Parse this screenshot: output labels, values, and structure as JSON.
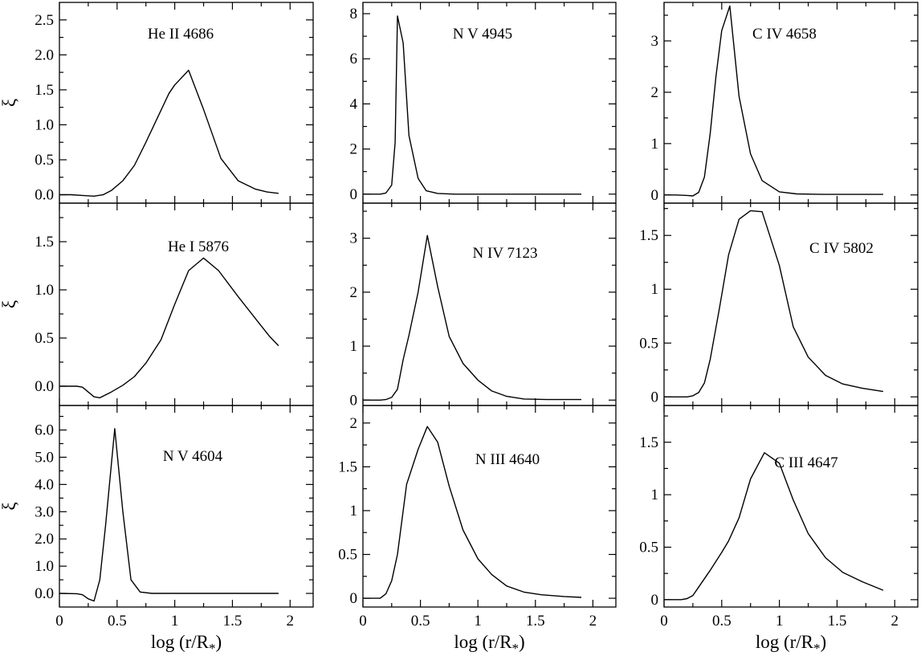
{
  "chart_data": [
    {
      "type": "line",
      "title": "He II 4686",
      "xlabel": "",
      "ylabel": "ξ",
      "xlim": [
        0,
        2.2
      ],
      "ylim": [
        -0.12,
        2.75
      ],
      "xticks": [
        0,
        0.5,
        1,
        1.5,
        2
      ],
      "xticklabels": [],
      "yticks": [
        0,
        0.5,
        1.0,
        1.5,
        2.0,
        2.5
      ],
      "yticklabels": [
        "0.0",
        "0.5",
        "1.0",
        "1.5",
        "2.0",
        "2.5"
      ],
      "x": [
        0,
        0.1,
        0.2,
        0.3,
        0.38,
        0.45,
        0.55,
        0.65,
        0.75,
        0.85,
        0.95,
        1.0,
        1.12,
        1.25,
        1.4,
        1.55,
        1.7,
        1.8,
        1.9
      ],
      "y": [
        0,
        0,
        -0.01,
        -0.02,
        0,
        0.06,
        0.2,
        0.42,
        0.75,
        1.1,
        1.45,
        1.57,
        1.78,
        1.22,
        0.52,
        0.2,
        0.08,
        0.04,
        0.02
      ]
    },
    {
      "type": "line",
      "title": "N V 4945",
      "xlabel": "",
      "ylabel": "",
      "xlim": [
        0,
        2.2
      ],
      "ylim": [
        -0.4,
        8.5
      ],
      "xticks": [
        0,
        0.5,
        1,
        1.5,
        2
      ],
      "xticklabels": [],
      "yticks": [
        0,
        2,
        4,
        6,
        8
      ],
      "yticklabels": [
        "0",
        "2",
        "4",
        "6",
        "8"
      ],
      "x": [
        0,
        0.15,
        0.2,
        0.25,
        0.28,
        0.3,
        0.35,
        0.4,
        0.48,
        0.55,
        0.65,
        0.8,
        1.0,
        1.5,
        1.9
      ],
      "y": [
        0,
        0,
        0.05,
        0.4,
        2.3,
        7.9,
        6.7,
        2.6,
        0.7,
        0.15,
        0.03,
        0,
        0,
        0,
        0
      ]
    },
    {
      "type": "line",
      "title": "C IV 4658",
      "xlabel": "",
      "ylabel": "",
      "xlim": [
        0,
        2.2
      ],
      "ylim": [
        -0.16,
        3.75
      ],
      "xticks": [
        0,
        0.5,
        1,
        1.5,
        2
      ],
      "xticklabels": [],
      "yticks": [
        0,
        1,
        2,
        3
      ],
      "yticklabels": [
        "0",
        "1",
        "2",
        "3"
      ],
      "x": [
        0,
        0.1,
        0.2,
        0.25,
        0.3,
        0.35,
        0.4,
        0.45,
        0.5,
        0.57,
        0.65,
        0.75,
        0.85,
        1.0,
        1.15,
        1.4,
        1.9
      ],
      "y": [
        0,
        0,
        -0.01,
        -0.02,
        0.05,
        0.35,
        1.2,
        2.3,
        3.2,
        3.68,
        1.92,
        0.8,
        0.28,
        0.06,
        0.02,
        0.01,
        0.01
      ]
    },
    {
      "type": "line",
      "title": "He I 5876",
      "xlabel": "",
      "ylabel": "ξ",
      "xlim": [
        0,
        2.2
      ],
      "ylim": [
        -0.2,
        1.9
      ],
      "xticks": [
        0,
        0.5,
        1,
        1.5,
        2
      ],
      "xticklabels": [],
      "yticks": [
        0,
        0.5,
        1.0,
        1.5
      ],
      "yticklabels": [
        "0.0",
        "0.5",
        "1.0",
        "1.5"
      ],
      "x": [
        0,
        0.15,
        0.2,
        0.25,
        0.3,
        0.35,
        0.45,
        0.55,
        0.65,
        0.75,
        0.88,
        1.0,
        1.12,
        1.25,
        1.38,
        1.55,
        1.72,
        1.82,
        1.9
      ],
      "y": [
        0,
        0,
        -0.01,
        -0.06,
        -0.11,
        -0.12,
        -0.06,
        0.01,
        0.1,
        0.24,
        0.48,
        0.85,
        1.2,
        1.33,
        1.2,
        0.93,
        0.67,
        0.52,
        0.42
      ]
    },
    {
      "type": "line",
      "title": "N IV 7123",
      "xlabel": "",
      "ylabel": "",
      "xlim": [
        0,
        2.2
      ],
      "ylim": [
        -0.1,
        3.65
      ],
      "xticks": [
        0,
        0.5,
        1,
        1.5,
        2
      ],
      "xticklabels": [],
      "yticks": [
        0,
        1,
        2,
        3
      ],
      "yticklabels": [
        "0",
        "1",
        "2",
        "3"
      ],
      "x": [
        0,
        0.15,
        0.2,
        0.25,
        0.3,
        0.35,
        0.4,
        0.48,
        0.56,
        0.65,
        0.75,
        0.87,
        1.0,
        1.12,
        1.25,
        1.4,
        1.6,
        1.9
      ],
      "y": [
        0,
        0,
        0.01,
        0.05,
        0.2,
        0.75,
        1.2,
        2.0,
        3.05,
        2.1,
        1.18,
        0.68,
        0.37,
        0.17,
        0.07,
        0.02,
        0.01,
        0.01
      ]
    },
    {
      "type": "line",
      "title": "C IV 5802",
      "xlabel": "",
      "ylabel": "",
      "xlim": [
        0,
        2.2
      ],
      "ylim": [
        -0.08,
        1.8
      ],
      "xticks": [
        0,
        0.5,
        1,
        1.5,
        2
      ],
      "xticklabels": [],
      "yticks": [
        0,
        0.5,
        1,
        1.5
      ],
      "yticklabels": [
        "0",
        "0.5",
        "1",
        "1.5"
      ],
      "x": [
        0,
        0.2,
        0.25,
        0.3,
        0.35,
        0.4,
        0.48,
        0.56,
        0.65,
        0.75,
        0.85,
        1.0,
        1.12,
        1.25,
        1.4,
        1.55,
        1.72,
        1.9
      ],
      "y": [
        0,
        0,
        0.01,
        0.04,
        0.13,
        0.35,
        0.82,
        1.32,
        1.65,
        1.73,
        1.72,
        1.22,
        0.65,
        0.37,
        0.2,
        0.12,
        0.08,
        0.05
      ]
    },
    {
      "type": "line",
      "title": "N V 4604",
      "xlabel": "log (r/R*)",
      "ylabel": "ξ",
      "xlim": [
        0,
        2.2
      ],
      "ylim": [
        -0.5,
        6.9
      ],
      "xticks": [
        0,
        0.5,
        1,
        1.5,
        2
      ],
      "xticklabels": [
        "0",
        "0.5",
        "1",
        "1.5",
        "2"
      ],
      "yticks": [
        0,
        1,
        2,
        3,
        4,
        5,
        6
      ],
      "yticklabels": [
        "0.0",
        "1.0",
        "2.0",
        "3.0",
        "4.0",
        "5.0",
        "6.0"
      ],
      "x": [
        0,
        0.15,
        0.2,
        0.25,
        0.3,
        0.35,
        0.4,
        0.48,
        0.55,
        0.62,
        0.7,
        0.8,
        1.0,
        1.5,
        1.9
      ],
      "y": [
        0,
        -0.01,
        -0.05,
        -0.2,
        -0.28,
        0.5,
        2.5,
        6.05,
        3.0,
        0.5,
        0.05,
        0.0,
        0.0,
        0.0,
        0.0
      ]
    },
    {
      "type": "line",
      "title": "N III 4640",
      "xlabel": "log (r/R*)",
      "ylabel": "",
      "xlim": [
        0,
        2.2
      ],
      "ylim": [
        -0.1,
        2.2
      ],
      "xticks": [
        0,
        0.5,
        1,
        1.5,
        2
      ],
      "xticklabels": [
        "0",
        "0.5",
        "1",
        "1.5",
        "2"
      ],
      "yticks": [
        0,
        0.5,
        1,
        1.5,
        2
      ],
      "yticklabels": [
        "0",
        "0.5",
        "1",
        "1.5",
        "2"
      ],
      "x": [
        0,
        0.15,
        0.2,
        0.25,
        0.3,
        0.38,
        0.48,
        0.56,
        0.65,
        0.75,
        0.87,
        1.0,
        1.12,
        1.25,
        1.4,
        1.55,
        1.75,
        1.9
      ],
      "y": [
        0,
        0,
        0.05,
        0.2,
        0.5,
        1.3,
        1.7,
        1.96,
        1.78,
        1.28,
        0.78,
        0.45,
        0.27,
        0.14,
        0.07,
        0.04,
        0.02,
        0.01
      ]
    },
    {
      "type": "line",
      "title": "C III 4647",
      "xlabel": "log (r/R*)",
      "ylabel": "",
      "xlim": [
        0,
        2.2
      ],
      "ylim": [
        -0.07,
        1.85
      ],
      "xticks": [
        0,
        0.5,
        1,
        1.5,
        2
      ],
      "xticklabels": [
        "0",
        "0.5",
        "1",
        "1.5",
        "2"
      ],
      "yticks": [
        0,
        0.5,
        1,
        1.5
      ],
      "yticklabels": [
        "0",
        "0.5",
        "1",
        "1.5"
      ],
      "x": [
        0,
        0.15,
        0.2,
        0.25,
        0.3,
        0.4,
        0.5,
        0.56,
        0.65,
        0.75,
        0.87,
        1.0,
        1.12,
        1.25,
        1.4,
        1.55,
        1.72,
        1.9
      ],
      "y": [
        0,
        0,
        0.01,
        0.04,
        0.12,
        0.28,
        0.45,
        0.56,
        0.78,
        1.15,
        1.4,
        1.3,
        0.95,
        0.63,
        0.4,
        0.26,
        0.17,
        0.09
      ]
    }
  ]
}
